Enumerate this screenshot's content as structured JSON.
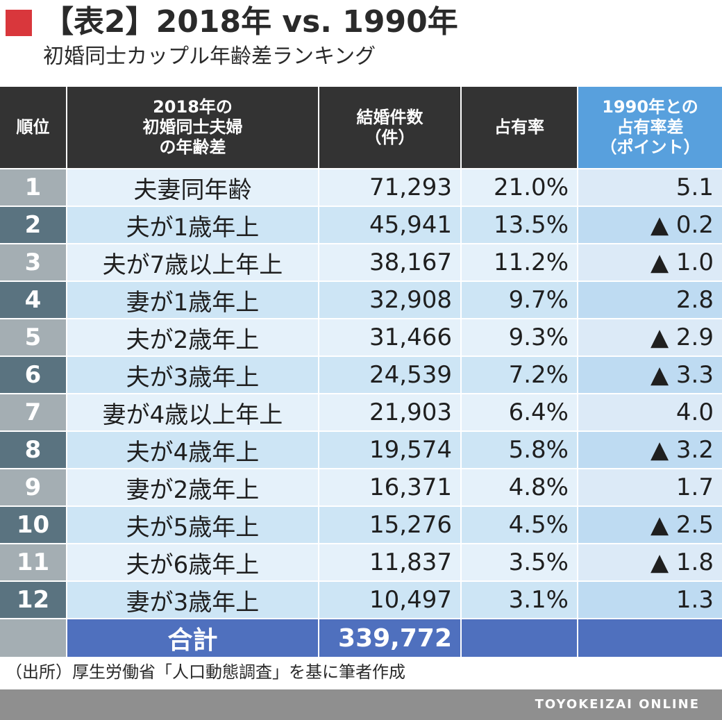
{
  "header": {
    "title": "【表2】2018年 vs. 1990年",
    "subtitle": "初婚同士カップル年齢差ランキング"
  },
  "columns": [
    "順位",
    "2018年の\n初婚同士夫婦\nの年齢差",
    "結婚件数\n（件）",
    "占有率",
    "1990年との\n占有率差\n（ポイント）"
  ],
  "rows": [
    {
      "rank": "1",
      "diff": "夫妻同年齢",
      "count": "71,293",
      "share": "21.0%",
      "change": "5.1"
    },
    {
      "rank": "2",
      "diff": "夫が1歳年上",
      "count": "45,941",
      "share": "13.5%",
      "change": "▲ 0.2"
    },
    {
      "rank": "3",
      "diff": "夫が7歳以上年上",
      "count": "38,167",
      "share": "11.2%",
      "change": "▲ 1.0"
    },
    {
      "rank": "4",
      "diff": "妻が1歳年上",
      "count": "32,908",
      "share": "9.7%",
      "change": "2.8"
    },
    {
      "rank": "5",
      "diff": "夫が2歳年上",
      "count": "31,466",
      "share": "9.3%",
      "change": "▲ 2.9"
    },
    {
      "rank": "6",
      "diff": "夫が3歳年上",
      "count": "24,539",
      "share": "7.2%",
      "change": "▲ 3.3"
    },
    {
      "rank": "7",
      "diff": "妻が4歳以上年上",
      "count": "21,903",
      "share": "6.4%",
      "change": "4.0"
    },
    {
      "rank": "8",
      "diff": "夫が4歳年上",
      "count": "19,574",
      "share": "5.8%",
      "change": "▲ 3.2"
    },
    {
      "rank": "9",
      "diff": "妻が2歳年上",
      "count": "16,371",
      "share": "4.8%",
      "change": "1.7"
    },
    {
      "rank": "10",
      "diff": "夫が5歳年上",
      "count": "15,276",
      "share": "4.5%",
      "change": "▲ 2.5"
    },
    {
      "rank": "11",
      "diff": "夫が6歳年上",
      "count": "11,837",
      "share": "3.5%",
      "change": "▲ 1.8"
    },
    {
      "rank": "12",
      "diff": "妻が3歳年上",
      "count": "10,497",
      "share": "3.1%",
      "change": "1.3"
    }
  ],
  "total": {
    "label": "合計",
    "count": "339,772"
  },
  "source": "（出所）厚生労働省「人口動態調査」を基に筆者作成",
  "brand": "TOYOKEIZAI ONLINE",
  "colors": {
    "accent": "#d9373c",
    "header_dark": "#333333",
    "header_blue": "#58a0dd",
    "total_blue": "#4f70be",
    "row_light": "#e5f1fa",
    "row_mid": "#cde5f5"
  },
  "chart_data": {
    "type": "table",
    "title": "【表2】2018年 vs. 1990年",
    "subtitle": "初婚同士カップル年齢差ランキング",
    "columns": [
      "順位",
      "2018年の初婚同士夫婦の年齢差",
      "結婚件数（件）",
      "占有率",
      "1990年との占有率差（ポイント）"
    ],
    "rows": [
      [
        1,
        "夫妻同年齢",
        71293,
        21.0,
        5.1
      ],
      [
        2,
        "夫が1歳年上",
        45941,
        13.5,
        -0.2
      ],
      [
        3,
        "夫が7歳以上年上",
        38167,
        11.2,
        -1.0
      ],
      [
        4,
        "妻が1歳年上",
        32908,
        9.7,
        2.8
      ],
      [
        5,
        "夫が2歳年上",
        31466,
        9.3,
        -2.9
      ],
      [
        6,
        "夫が3歳年上",
        24539,
        7.2,
        -3.3
      ],
      [
        7,
        "妻が4歳以上年上",
        21903,
        6.4,
        4.0
      ],
      [
        8,
        "夫が4歳年上",
        19574,
        5.8,
        -3.2
      ],
      [
        9,
        "妻が2歳年上",
        16371,
        4.8,
        1.7
      ],
      [
        10,
        "夫が5歳年上",
        15276,
        4.5,
        -2.5
      ],
      [
        11,
        "夫が6歳年上",
        11837,
        3.5,
        -1.8
      ],
      [
        12,
        "妻が3歳年上",
        10497,
        3.1,
        1.3
      ]
    ],
    "total": 339772
  }
}
